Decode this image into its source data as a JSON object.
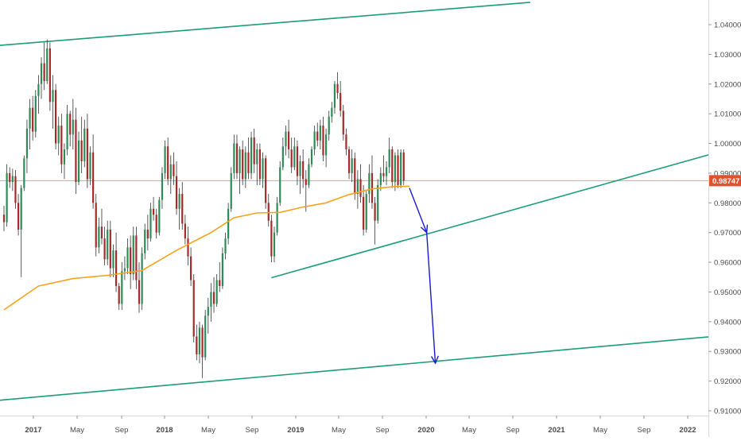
{
  "chart_data": {
    "type": "candlestick",
    "x_tick_labels": [
      "2017",
      "May",
      "Sep",
      "2018",
      "May",
      "Sep",
      "2019",
      "May",
      "Sep",
      "2020",
      "May",
      "Sep",
      "2021",
      "May",
      "Sep",
      "2022"
    ],
    "y_tick_labels": [
      "1.04000",
      "1.03000",
      "1.02000",
      "1.01000",
      "1.00000",
      "0.99000",
      "0.98000",
      "0.97000",
      "0.96000",
      "0.95000",
      "0.94000",
      "0.93000",
      "0.92000",
      "0.91000"
    ],
    "ylim": [
      0.9055,
      1.0435
    ],
    "last_price": 0.98747,
    "last_price_label": "0.98747",
    "candles": [
      [
        0.976,
        0.979,
        0.9705,
        0.9735
      ],
      [
        0.9735,
        0.993,
        0.972,
        0.99
      ],
      [
        0.99,
        0.992,
        0.985,
        0.987
      ],
      [
        0.987,
        0.9915,
        0.984,
        0.989
      ],
      [
        0.989,
        0.991,
        0.978,
        0.98
      ],
      [
        0.98,
        0.983,
        0.969,
        0.971
      ],
      [
        0.971,
        0.986,
        0.955,
        0.985
      ],
      [
        0.985,
        0.996,
        0.984,
        0.995
      ],
      [
        0.995,
        1.008,
        0.99,
        1.005
      ],
      [
        1.005,
        1.015,
        0.998,
        1.012
      ],
      [
        1.012,
        1.016,
        1.001,
        1.004
      ],
      [
        1.004,
        1.018,
        1.002,
        1.016
      ],
      [
        1.016,
        1.023,
        1.01,
        1.02
      ],
      [
        1.02,
        1.029,
        1.015,
        1.027
      ],
      [
        1.027,
        1.034,
        1.018,
        1.021
      ],
      [
        1.021,
        1.035,
        1.02,
        1.032
      ],
      [
        1.032,
        1.034,
        1.011,
        1.014
      ],
      [
        1.014,
        1.023,
        1.005,
        1.018
      ],
      [
        1.018,
        1.02,
        0.998,
        1.0
      ],
      [
        1.0,
        1.009,
        0.996,
        1.006
      ],
      [
        1.006,
        1.01,
        0.99,
        0.993
      ],
      [
        0.993,
        1.0,
        0.988,
        0.998
      ],
      [
        0.998,
        1.013,
        0.996,
        1.01
      ],
      [
        1.01,
        1.011,
        0.999,
        1.003
      ],
      [
        1.003,
        1.015,
        0.998,
        1.008
      ],
      [
        1.008,
        1.012,
        0.983,
        0.987
      ],
      [
        0.987,
        1.004,
        0.986,
        1.001
      ],
      [
        1.001,
        1.009,
        0.99,
        0.994
      ],
      [
        0.994,
        1.008,
        0.992,
        1.005
      ],
      [
        1.005,
        1.01,
        0.985,
        0.988
      ],
      [
        0.988,
        0.999,
        0.986,
        0.997
      ],
      [
        0.997,
        1.003,
        0.978,
        0.98
      ],
      [
        0.98,
        0.983,
        0.962,
        0.965
      ],
      [
        0.965,
        0.975,
        0.963,
        0.972
      ],
      [
        0.972,
        0.978,
        0.966,
        0.968
      ],
      [
        0.968,
        0.972,
        0.959,
        0.961
      ],
      [
        0.961,
        0.974,
        0.959,
        0.971
      ],
      [
        0.971,
        0.974,
        0.955,
        0.958
      ],
      [
        0.958,
        0.966,
        0.955,
        0.964
      ],
      [
        0.964,
        0.97,
        0.95,
        0.952
      ],
      [
        0.952,
        0.953,
        0.944,
        0.946
      ],
      [
        0.946,
        0.96,
        0.944,
        0.957
      ],
      [
        0.957,
        0.962,
        0.954,
        0.958
      ],
      [
        0.958,
        0.968,
        0.956,
        0.965
      ],
      [
        0.965,
        0.969,
        0.951,
        0.956
      ],
      [
        0.956,
        0.972,
        0.954,
        0.969
      ],
      [
        0.969,
        0.972,
        0.951,
        0.954
      ],
      [
        0.954,
        0.96,
        0.943,
        0.946
      ],
      [
        0.946,
        0.965,
        0.944,
        0.963
      ],
      [
        0.963,
        0.973,
        0.961,
        0.971
      ],
      [
        0.971,
        0.976,
        0.964,
        0.968
      ],
      [
        0.968,
        0.98,
        0.967,
        0.978
      ],
      [
        0.978,
        0.982,
        0.974,
        0.976
      ],
      [
        0.976,
        0.978,
        0.968,
        0.97
      ],
      [
        0.97,
        0.982,
        0.969,
        0.981
      ],
      [
        0.981,
        0.992,
        0.978,
        0.99
      ],
      [
        0.99,
        1.001,
        0.988,
        0.999
      ],
      [
        0.999,
        1.002,
        0.986,
        0.988
      ],
      [
        0.988,
        0.996,
        0.983,
        0.993
      ],
      [
        0.993,
        0.997,
        0.986,
        0.989
      ],
      [
        0.989,
        0.994,
        0.976,
        0.978
      ],
      [
        0.978,
        0.985,
        0.971,
        0.983
      ],
      [
        0.983,
        0.987,
        0.971,
        0.973
      ],
      [
        0.973,
        0.976,
        0.966,
        0.968
      ],
      [
        0.968,
        0.972,
        0.959,
        0.962
      ],
      [
        0.962,
        0.965,
        0.952,
        0.954
      ],
      [
        0.954,
        0.956,
        0.933,
        0.935
      ],
      [
        0.935,
        0.939,
        0.927,
        0.929
      ],
      [
        0.929,
        0.94,
        0.926,
        0.938
      ],
      [
        0.938,
        0.939,
        0.921,
        0.928
      ],
      [
        0.928,
        0.944,
        0.927,
        0.942
      ],
      [
        0.942,
        0.948,
        0.936,
        0.945
      ],
      [
        0.945,
        0.953,
        0.94,
        0.95
      ],
      [
        0.95,
        0.955,
        0.943,
        0.946
      ],
      [
        0.946,
        0.956,
        0.945,
        0.954
      ],
      [
        0.954,
        0.96,
        0.95,
        0.952
      ],
      [
        0.952,
        0.965,
        0.951,
        0.963
      ],
      [
        0.963,
        0.97,
        0.961,
        0.968
      ],
      [
        0.968,
        0.98,
        0.966,
        0.978
      ],
      [
        0.978,
        0.992,
        0.977,
        0.99
      ],
      [
        0.99,
        1.003,
        0.988,
        1.0
      ],
      [
        1.0,
        1.003,
        0.988,
        0.99
      ],
      [
        0.99,
        0.999,
        0.983,
        0.998
      ],
      [
        0.998,
        1.001,
        0.986,
        0.988
      ],
      [
        0.988,
        0.999,
        0.985,
        0.997
      ],
      [
        0.997,
        1.002,
        0.988,
        0.99
      ],
      [
        0.99,
        1.004,
        0.988,
        1.002
      ],
      [
        1.002,
        1.005,
        0.99,
        0.993
      ],
      [
        0.993,
        1.0,
        0.986,
        0.998
      ],
      [
        0.998,
        1.0,
        0.986,
        0.988
      ],
      [
        0.988,
        0.997,
        0.985,
        0.995
      ],
      [
        0.995,
        0.996,
        0.978,
        0.98
      ],
      [
        0.98,
        0.983,
        0.972,
        0.974
      ],
      [
        0.974,
        0.976,
        0.96,
        0.962
      ],
      [
        0.962,
        0.972,
        0.96,
        0.97
      ],
      [
        0.97,
        0.982,
        0.969,
        0.98
      ],
      [
        0.98,
        0.994,
        0.979,
        0.992
      ],
      [
        0.992,
        1.002,
        0.991,
        0.999
      ],
      [
        0.999,
        1.006,
        0.996,
        1.004
      ],
      [
        1.004,
        1.008,
        0.995,
        0.998
      ],
      [
        0.998,
        1.002,
        0.99,
        0.992
      ],
      [
        0.992,
        1.002,
        0.991,
        0.999
      ],
      [
        0.999,
        1.001,
        0.986,
        0.989
      ],
      [
        0.989,
        0.996,
        0.983,
        0.994
      ],
      [
        0.994,
        0.998,
        0.985,
        0.988
      ],
      [
        0.988,
        0.991,
        0.977,
        0.986
      ],
      [
        0.986,
        0.995,
        0.985,
        0.993
      ],
      [
        0.993,
        0.999,
        0.992,
        0.998
      ],
      [
        0.998,
        1.006,
        0.996,
        1.004
      ],
      [
        1.004,
        1.007,
        0.999,
        1.001
      ],
      [
        1.001,
        1.008,
        0.998,
        1.006
      ],
      [
        1.006,
        1.009,
        0.994,
        0.996
      ],
      [
        0.996,
        1.005,
        0.992,
        1.003
      ],
      [
        1.003,
        1.011,
        1.001,
        1.009
      ],
      [
        1.009,
        1.014,
        1.007,
        1.012
      ],
      [
        1.012,
        1.021,
        1.01,
        1.02
      ],
      [
        1.02,
        1.024,
        1.015,
        1.017
      ],
      [
        1.017,
        1.021,
        1.009,
        1.011
      ],
      [
        1.011,
        1.013,
        1.001,
        1.003
      ],
      [
        1.003,
        1.005,
        0.996,
        0.998
      ],
      [
        0.998,
        0.999,
        0.988,
        0.99
      ],
      [
        0.99,
        0.998,
        0.987,
        0.995
      ],
      [
        0.995,
        0.997,
        0.981,
        0.983
      ],
      [
        0.983,
        0.991,
        0.978,
        0.988
      ],
      [
        0.988,
        0.993,
        0.98,
        0.982
      ],
      [
        0.982,
        0.986,
        0.969,
        0.971
      ],
      [
        0.971,
        0.984,
        0.97,
        0.983
      ],
      [
        0.983,
        0.993,
        0.98,
        0.99
      ],
      [
        0.99,
        0.996,
        0.978,
        0.98
      ],
      [
        0.98,
        0.982,
        0.966,
        0.974
      ],
      [
        0.974,
        0.988,
        0.973,
        0.986
      ],
      [
        0.986,
        0.992,
        0.984,
        0.99
      ],
      [
        0.99,
        0.996,
        0.987,
        0.989
      ],
      [
        0.989,
        0.994,
        0.986,
        0.992
      ],
      [
        0.992,
        1.002,
        0.99,
        0.998
      ],
      [
        0.998,
        0.999,
        0.985,
        0.987
      ],
      [
        0.987,
        0.997,
        0.984,
        0.996
      ],
      [
        0.996,
        0.998,
        0.985,
        0.986
      ],
      [
        0.986,
        0.998,
        0.985,
        0.997
      ],
      [
        0.997,
        0.998,
        0.986,
        0.98747
      ]
    ],
    "ma_line": [
      [
        0,
        0.944
      ],
      [
        12,
        0.952
      ],
      [
        24,
        0.9545
      ],
      [
        36,
        0.9556
      ],
      [
        48,
        0.9572
      ],
      [
        60,
        0.964
      ],
      [
        72,
        0.97
      ],
      [
        80,
        0.975
      ],
      [
        88,
        0.9766
      ],
      [
        96,
        0.9768
      ],
      [
        104,
        0.9786
      ],
      [
        112,
        0.98
      ],
      [
        120,
        0.9828
      ],
      [
        128,
        0.9847
      ],
      [
        136,
        0.9855
      ],
      [
        141,
        0.9856
      ]
    ],
    "channel_lines": [
      {
        "from": [
          -8,
          1.0325
        ],
        "to": [
          183,
          1.0475
        ],
        "color": "#1b9e77"
      },
      {
        "from": [
          -8,
          0.913
        ],
        "to": [
          258,
          0.936
        ],
        "color": "#1b9e77"
      },
      {
        "from": [
          93,
          0.9548
        ],
        "to": [
          258,
          0.9997
        ],
        "color": "#1b9e77"
      }
    ],
    "projection_arrows": [
      {
        "from": [
          141,
          0.985
        ],
        "to": [
          147,
          0.97
        ],
        "color": "#1a1ad4"
      },
      {
        "from": [
          147,
          0.97
        ],
        "to": [
          150,
          0.926
        ],
        "color": "#1a1ad4"
      }
    ]
  }
}
